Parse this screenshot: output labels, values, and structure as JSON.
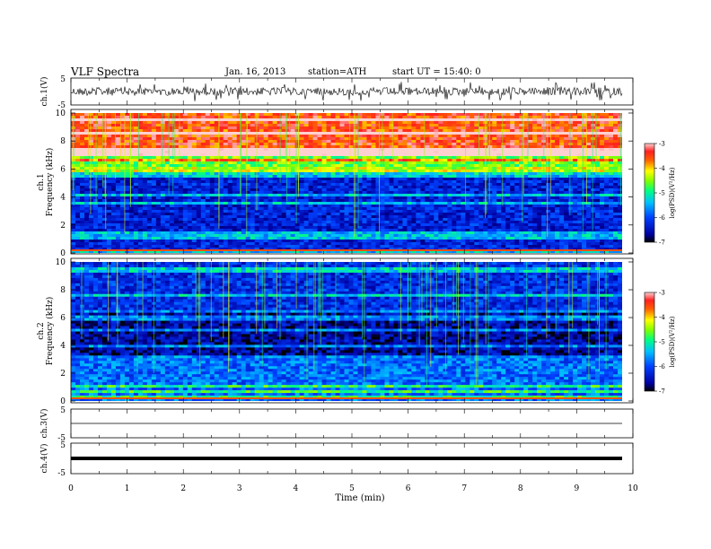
{
  "header": {
    "title": "VLF  Spectra",
    "date": "Jan. 16, 2013",
    "station": "station=ATH",
    "start": "start  UT  =   15:40: 0"
  },
  "chart_data": [
    {
      "type": "line",
      "panel": "ch1-waveform",
      "ylabel": "ch.1(V)",
      "ylim": [
        -5,
        5
      ],
      "yticks": [
        "5",
        "-5"
      ],
      "xlim": [
        0,
        10
      ],
      "signal": "noisy waveform, roughly ±2.5 V with spikes, across 0–9.8 min"
    },
    {
      "type": "heatmap",
      "panel": "ch1-spectrogram",
      "ylabel": "ch.1",
      "ylabel2": "Frequency  (kHz)",
      "ylim": [
        0,
        10
      ],
      "yticks": [
        "0",
        "2",
        "4",
        "6",
        "8",
        "10"
      ],
      "xlim": [
        0,
        10
      ],
      "colorbar": {
        "label": "log(PSD)(V²/Hz)",
        "range": [
          -7,
          -3
        ],
        "ticks": [
          "-3",
          "-4",
          "-5",
          "-6",
          "-7"
        ]
      },
      "bands_khz": [
        {
          "from": 0,
          "to": 5.5,
          "level": -6.3
        },
        {
          "from": 5.5,
          "to": 6.2,
          "level": -5.2
        },
        {
          "from": 6.2,
          "to": 7.0,
          "level": -4.6
        },
        {
          "from": 7.0,
          "to": 10,
          "level": -3.5
        }
      ]
    },
    {
      "type": "heatmap",
      "panel": "ch2-spectrogram",
      "ylabel": "ch.2",
      "ylabel2": "Frequency  (kHz)",
      "ylim": [
        0,
        10
      ],
      "yticks": [
        "0",
        "2",
        "4",
        "6",
        "8",
        "10"
      ],
      "xlim": [
        0,
        10
      ],
      "colorbar": {
        "label": "log(PSD)(V²/Hz)",
        "range": [
          -7,
          -3
        ],
        "ticks": [
          "-3",
          "-4",
          "-5",
          "-6",
          "-7"
        ]
      },
      "bands_khz": [
        {
          "from": 0,
          "to": 3.0,
          "level": -5.8
        },
        {
          "from": 3.0,
          "to": 6.5,
          "level": -6.6
        },
        {
          "from": 6.5,
          "to": 10,
          "level": -6.2
        }
      ]
    },
    {
      "type": "line",
      "panel": "ch3-waveform",
      "ylabel": "ch.3(V)",
      "ylim": [
        -5,
        5
      ],
      "yticks": [
        "5",
        "-5"
      ],
      "xlim": [
        0,
        10
      ],
      "signal": "flat line near 0 V"
    },
    {
      "type": "line",
      "panel": "ch4-waveform",
      "ylabel": "ch.4(V)",
      "ylim": [
        -5,
        5
      ],
      "yticks": [
        "5",
        "-5"
      ],
      "xlim": [
        0,
        10
      ],
      "signal": "thick band around 0 V",
      "xlabel": "Time  (min)",
      "xticks": [
        "0",
        "1",
        "2",
        "3",
        "4",
        "5",
        "6",
        "7",
        "8",
        "9",
        "10"
      ]
    }
  ]
}
